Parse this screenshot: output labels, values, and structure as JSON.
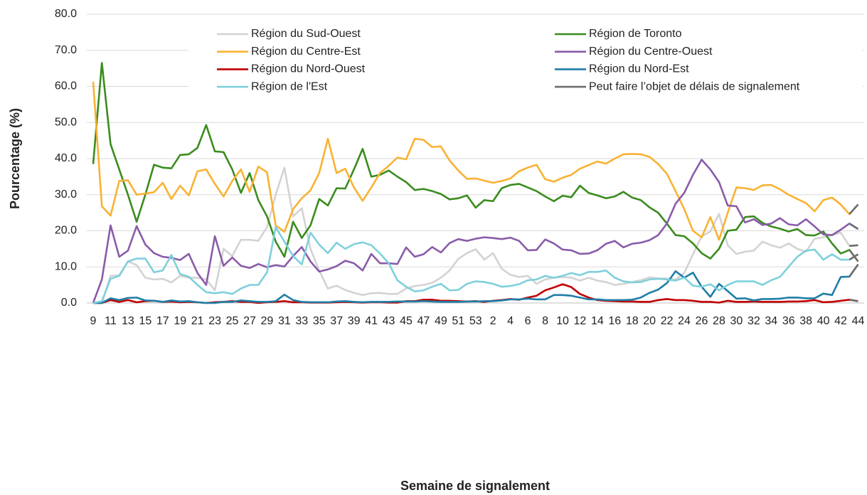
{
  "chart_data": {
    "type": "line",
    "xlabel": "Semaine de signalement",
    "ylabel": "Pourcentage (%)",
    "categories": [
      "9",
      null,
      "11",
      null,
      "13",
      null,
      "15",
      null,
      "17",
      null,
      "19",
      null,
      "21",
      null,
      "23",
      null,
      "25",
      null,
      "27",
      null,
      "29",
      null,
      "31",
      null,
      "33",
      null,
      "35",
      null,
      "37",
      null,
      "39",
      null,
      "41",
      null,
      "43",
      null,
      "45",
      null,
      "47",
      null,
      "49",
      null,
      "51",
      null,
      "53",
      null,
      "2",
      null,
      "4",
      null,
      "6",
      null,
      "8",
      null,
      "10",
      null,
      "12",
      null,
      "14",
      null,
      "16",
      null,
      "18",
      null,
      "20",
      null,
      "22",
      null,
      "24",
      null,
      "26",
      null,
      "28",
      null,
      "30",
      null,
      "32",
      null,
      "34",
      null,
      "36",
      null,
      "38",
      null,
      "40",
      null,
      "42",
      null,
      "44"
    ],
    "ylim": [
      0,
      80
    ],
    "yticks": [
      {
        "value": 0,
        "label": "0.0"
      },
      {
        "value": 10,
        "label": "10.0"
      },
      {
        "value": 20,
        "label": "20.0"
      },
      {
        "value": 30,
        "label": "30.0"
      },
      {
        "value": 40,
        "label": "40.0"
      },
      {
        "value": 50,
        "label": "50.0"
      },
      {
        "value": 60,
        "label": "60.0"
      },
      {
        "value": 70,
        "label": "70.0"
      },
      {
        "value": 80,
        "label": "80.0"
      }
    ],
    "grid": true,
    "delay": {
      "name": "Peut faire l’objet de délais de signalement",
      "color": "#6e6e6e",
      "week": "44"
    },
    "series": [
      {
        "name": "Région du Sud-Ouest",
        "color": "#d3d3d3",
        "values": [
          0,
          0,
          7.5,
          7.7,
          11.5,
          10.5,
          7,
          6.5,
          6.7,
          5.7,
          7.5,
          7,
          7,
          6.5,
          3.5,
          15,
          13,
          17.5,
          17.5,
          17.2,
          21,
          30,
          37.5,
          24,
          26.2,
          15,
          9,
          4,
          4.8,
          3.6,
          2.8,
          2.2,
          2.7,
          2.8,
          2.5,
          2.5,
          4,
          4.7,
          5,
          5.6,
          7,
          9,
          12.2,
          13.8,
          14.9,
          12,
          13.8,
          9.5,
          7.8,
          7.2,
          7.5,
          5.3,
          6.5,
          7,
          7.2,
          7,
          6.2,
          7,
          6.2,
          5.8,
          5,
          5.3,
          5.8,
          6.3,
          7.1,
          6.8,
          6.8,
          6.5,
          8.3,
          13.5,
          18.5,
          19.8,
          24.7,
          16,
          13.6,
          14.2,
          14.5,
          17,
          16,
          15.3,
          16.5,
          15,
          14.2,
          17.8,
          18.2,
          18.8,
          19.5,
          15.8,
          16
        ]
      },
      {
        "name": "Région de Toronto",
        "color": "#3a8c1e",
        "values": [
          38.5,
          66.5,
          44,
          37,
          30,
          22.5,
          30,
          38.3,
          37.5,
          37.3,
          41,
          41.2,
          43,
          49.3,
          42,
          41.8,
          37,
          30.5,
          36,
          28.5,
          24,
          17,
          12.8,
          22.5,
          18,
          21.5,
          28.8,
          27,
          31.8,
          31.7,
          37,
          42.7,
          35,
          35.5,
          36.7,
          35,
          33.5,
          31.3,
          31.6,
          31,
          30.2,
          28.7,
          29,
          29.8,
          26.4,
          28.5,
          28.2,
          31.8,
          32.7,
          33,
          32,
          31,
          29.5,
          28.2,
          29.7,
          29.3,
          32.5,
          30.5,
          29.8,
          29,
          29.5,
          30.8,
          29.2,
          28.5,
          26.5,
          25,
          22,
          18.8,
          18.5,
          16.5,
          13.8,
          12.3,
          15,
          20,
          20.3,
          23.8,
          24,
          22.2,
          21.2,
          20.6,
          19.8,
          20.5,
          18.8,
          18.7,
          19.8,
          16.5,
          13.7,
          14.7,
          11.5
        ]
      },
      {
        "name": "Région du Centre-Est",
        "color": "#f9b233",
        "values": [
          61.3,
          26.8,
          24.2,
          33.8,
          34,
          30,
          30.3,
          30.7,
          33.3,
          28.8,
          32.5,
          29.8,
          36.5,
          37,
          33,
          29.5,
          33.8,
          37,
          30.8,
          37.8,
          36.2,
          21.5,
          19.7,
          26,
          29,
          31.2,
          36,
          45.5,
          36,
          37.2,
          32,
          28.3,
          32,
          36,
          38,
          40.3,
          39.8,
          45.5,
          45.2,
          43.2,
          43.4,
          39.5,
          36.7,
          34.4,
          34.5,
          33.9,
          33.3,
          33.8,
          34.5,
          36.5,
          37.5,
          38.3,
          34.3,
          33.6,
          34.7,
          35.5,
          37.2,
          38.2,
          39.2,
          38.6,
          40,
          41.2,
          41.3,
          41.2,
          40.5,
          38.5,
          35.8,
          31,
          26,
          20,
          18.2,
          23.8,
          17.5,
          25,
          32,
          31.8,
          31.3,
          32.6,
          32.7,
          31.5,
          30,
          28.8,
          27.7,
          25.4,
          28.5,
          29.2,
          27.3,
          24.6,
          27.3
        ]
      },
      {
        "name": "Région du Centre-Ouest",
        "color": "#8a5ca8",
        "values": [
          0,
          6.5,
          21.5,
          12.8,
          14.5,
          21.3,
          16.2,
          13.8,
          12.8,
          12.5,
          11.9,
          13.6,
          8.3,
          5,
          18.5,
          10.3,
          12.6,
          10.3,
          9.7,
          10.8,
          9.9,
          10.5,
          10.1,
          13,
          15.5,
          11.5,
          8.7,
          9.3,
          10.2,
          11.7,
          11,
          9,
          13.6,
          11,
          11,
          10.8,
          15.4,
          12.8,
          13.5,
          15.5,
          14,
          16.6,
          17.7,
          17.2,
          17.8,
          18.2,
          18,
          17.7,
          18.1,
          17.2,
          14.6,
          14.7,
          17.6,
          16.5,
          14.8,
          14.6,
          13.6,
          13.7,
          14.6,
          16.4,
          17.2,
          15.4,
          16.4,
          16.7,
          17.4,
          18.8,
          22,
          27.5,
          30.5,
          35.5,
          39.7,
          37,
          33.5,
          27,
          26.8,
          22.3,
          23.2,
          21.6,
          22,
          23.5,
          21.8,
          21.5,
          23.2,
          21.2,
          19,
          18.8,
          20.3,
          22,
          20.5
        ]
      },
      {
        "name": "Région du Nord-Ouest",
        "color": "#c00000",
        "values": [
          0,
          0,
          0.8,
          0.3,
          0.8,
          0.2,
          0.5,
          0.6,
          0.3,
          0.4,
          0.2,
          0.3,
          0.2,
          0,
          0.2,
          0.3,
          0.5,
          0.3,
          0.3,
          0,
          0.2,
          0.3,
          0.5,
          0.2,
          0.2,
          0.1,
          0.1,
          0.1,
          0.2,
          0.3,
          0.2,
          0.1,
          0.2,
          0.2,
          0.1,
          0.1,
          0.5,
          0.5,
          0.9,
          0.9,
          0.6,
          0.6,
          0.5,
          0.4,
          0.5,
          0.3,
          0.6,
          0.8,
          1.1,
          0.9,
          1.5,
          2,
          3.5,
          4.3,
          5.2,
          4.4,
          2.5,
          1.5,
          0.8,
          0.6,
          0.5,
          0.4,
          0.4,
          0.3,
          0.3,
          0.8,
          1.1,
          0.8,
          0.8,
          0.6,
          0.3,
          0.3,
          0.1,
          0.6,
          0.3,
          0.3,
          0.4,
          0.3,
          0.3,
          0.3,
          0.4,
          0.4,
          0.5,
          0.8,
          0.2,
          0.3,
          0.6,
          0.9,
          0.5
        ]
      },
      {
        "name": "Région du Nord-Est",
        "color": "#1f7ea6",
        "values": [
          0,
          0,
          1.3,
          0.8,
          1.4,
          1.5,
          0.7,
          0.6,
          0.3,
          0.7,
          0.4,
          0.5,
          0.2,
          0,
          0,
          0.3,
          0.3,
          0.7,
          0.5,
          0.3,
          0.3,
          0.5,
          2.3,
          0.8,
          0.3,
          0.2,
          0.2,
          0.2,
          0.4,
          0.5,
          0.3,
          0.2,
          0.3,
          0.3,
          0.3,
          0.4,
          0.4,
          0.4,
          0.5,
          0.4,
          0.3,
          0.3,
          0.3,
          0.4,
          0.4,
          0.5,
          0.5,
          0.7,
          1,
          1,
          1.2,
          1,
          1,
          2.2,
          2.2,
          2,
          1.5,
          1,
          1,
          0.8,
          0.8,
          0.8,
          0.9,
          1.5,
          2.8,
          3.7,
          5.5,
          8.8,
          7,
          8.4,
          4.5,
          1.7,
          5.3,
          3.3,
          1.2,
          1.3,
          0.7,
          1.1,
          1.1,
          1.2,
          1.5,
          1.5,
          1.3,
          1.3,
          2.6,
          2.2,
          7.2,
          7.3,
          10.7
        ]
      },
      {
        "name": "Région de l'Est",
        "color": "#7fd0db",
        "values": [
          0,
          0.5,
          6.7,
          7.5,
          11.5,
          12.3,
          12.3,
          8.5,
          9,
          13.3,
          8,
          7.3,
          5,
          3,
          2.7,
          3,
          2.5,
          4,
          5,
          5,
          8.5,
          21,
          17,
          13,
          10.7,
          19.5,
          16.2,
          13.8,
          16.7,
          15,
          16.3,
          16.8,
          16,
          13.7,
          11,
          6.3,
          4.5,
          3.2,
          3.5,
          4.5,
          5.3,
          3.5,
          3.6,
          5.3,
          6,
          5.8,
          5.3,
          4.5,
          4.7,
          5.2,
          6.3,
          6.5,
          7.5,
          7,
          7.5,
          8.3,
          7.7,
          8.6,
          8.6,
          9,
          7,
          6,
          5.7,
          5.8,
          6.5,
          6.7,
          6.5,
          6.2,
          7,
          4.8,
          4.5,
          5.2,
          3.5,
          5,
          6,
          6,
          6,
          5,
          6.3,
          7.2,
          10,
          12.8,
          14.5,
          14.8,
          12,
          13.5,
          12,
          12,
          13.5
        ]
      }
    ]
  }
}
